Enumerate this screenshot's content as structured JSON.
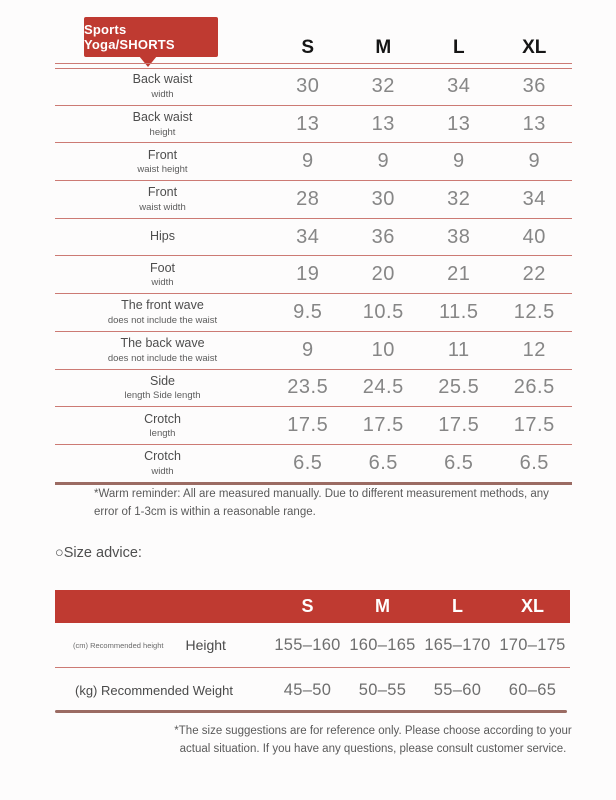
{
  "colors": {
    "accent_red": "#bf3a31",
    "separator_light_red": "#cc7a74",
    "divider_dark_brown": "#9b6b63"
  },
  "badge": {
    "label": "Sports Yoga/SHORTS"
  },
  "size_table": {
    "columns": [
      "S",
      "M",
      "L",
      "XL"
    ],
    "rows": [
      {
        "label": "Back waist",
        "sublabel": "width",
        "values": [
          "30",
          "32",
          "34",
          "36"
        ]
      },
      {
        "label": "Back waist",
        "sublabel": "height",
        "values": [
          "13",
          "13",
          "13",
          "13"
        ]
      },
      {
        "label": "Front",
        "sublabel": "waist height",
        "values": [
          "9",
          "9",
          "9",
          "9"
        ]
      },
      {
        "label": "Front",
        "sublabel": "waist width",
        "values": [
          "28",
          "30",
          "32",
          "34"
        ]
      },
      {
        "label": "Hips",
        "sublabel": "",
        "values": [
          "34",
          "36",
          "38",
          "40"
        ]
      },
      {
        "label": "Foot",
        "sublabel": "width",
        "values": [
          "19",
          "20",
          "21",
          "22"
        ]
      },
      {
        "label": "The front wave",
        "sublabel": "does not include the waist",
        "values": [
          "9.5",
          "10.5",
          "11.5",
          "12.5"
        ]
      },
      {
        "label": "The back wave",
        "sublabel": "does not include the waist",
        "values": [
          "9",
          "10",
          "11",
          "12"
        ]
      },
      {
        "label": "Side",
        "sublabel": "length Side length",
        "values": [
          "23.5",
          "24.5",
          "25.5",
          "26.5"
        ]
      },
      {
        "label": "Crotch",
        "sublabel": "length",
        "values": [
          "17.5",
          "17.5",
          "17.5",
          "17.5"
        ]
      },
      {
        "label": "Crotch",
        "sublabel": "width",
        "values": [
          "6.5",
          "6.5",
          "6.5",
          "6.5"
        ]
      }
    ],
    "warm_reminder": "*Warm reminder: All are measured manually. Due to different measurement methods, any error of 1-3cm is within a reasonable range."
  },
  "size_advice": {
    "heading_bullet": "○",
    "heading_label": "Size advice:",
    "columns": [
      "S",
      "M",
      "L",
      "XL"
    ],
    "rows": [
      {
        "prefix": "(cm) Recommended height",
        "label": "Height",
        "values": [
          "155–160",
          "160–165",
          "165–170",
          "170–175"
        ]
      },
      {
        "prefix": "",
        "label": "(kg) Recommended Weight",
        "values": [
          "45–50",
          "50–55",
          "55–60",
          "60–65"
        ]
      }
    ],
    "footnote": "*The size suggestions are for reference only. Please choose according to your actual situation. If you have any questions, please consult customer service."
  }
}
